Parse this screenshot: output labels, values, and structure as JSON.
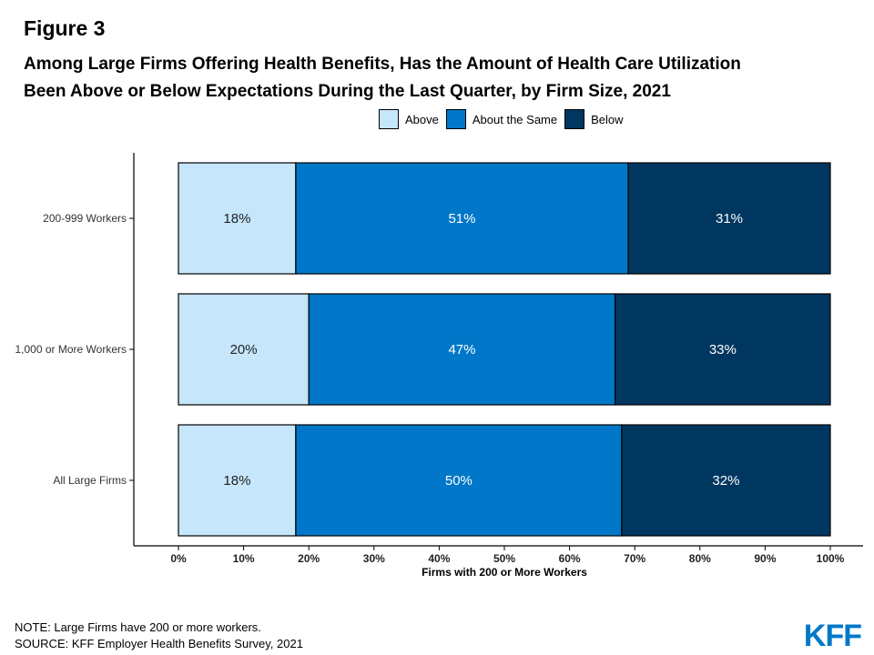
{
  "figure_label": "Figure 3",
  "title_line1": "Among Large Firms Offering Health Benefits, Has the Amount of Health Care Utilization",
  "title_line2": "Been Above or Below Expectations During the Last Quarter, by Firm Size, 2021",
  "note": "NOTE: Large Firms have 200 or more workers.",
  "source": "SOURCE: KFF Employer Health Benefits Survey, 2021",
  "logo": "KFF",
  "chart_data": {
    "type": "bar",
    "orientation": "horizontal",
    "stacked": true,
    "categories": [
      "200-999 Workers",
      "1,000 or More Workers",
      "All Large Firms"
    ],
    "series": [
      {
        "name": "Above",
        "color": "#C5E6FB",
        "label_color": "#222222",
        "values": [
          18,
          20,
          18
        ],
        "labels": [
          "18%",
          "20%",
          "18%"
        ]
      },
      {
        "name": "About the Same",
        "color": "#0077C8",
        "label_color": "#ffffff",
        "values": [
          51,
          47,
          50
        ],
        "labels": [
          "51%",
          "47%",
          "50%"
        ]
      },
      {
        "name": "Below",
        "color": "#003760",
        "label_color": "#ffffff",
        "values": [
          31,
          33,
          32
        ],
        "labels": [
          "31%",
          "33%",
          "32%"
        ]
      }
    ],
    "xlabel": "Firms with 200 or More Workers",
    "xlim": [
      0,
      100
    ],
    "xticks": [
      0,
      10,
      20,
      30,
      40,
      50,
      60,
      70,
      80,
      90,
      100
    ],
    "xtick_labels": [
      "0%",
      "10%",
      "20%",
      "30%",
      "40%",
      "50%",
      "60%",
      "70%",
      "80%",
      "90%",
      "100%"
    ],
    "legend_position": "top",
    "grid": false
  }
}
